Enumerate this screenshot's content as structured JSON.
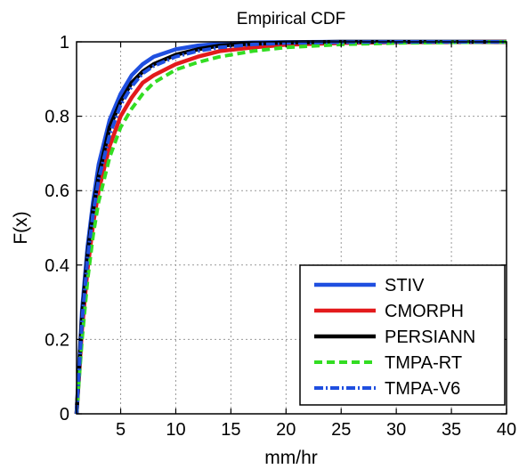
{
  "chart_data": {
    "type": "line",
    "title": "Empirical CDF",
    "xlabel": "mm/hr",
    "ylabel": "F(x)",
    "xlim": [
      1,
      40
    ],
    "ylim": [
      0,
      1
    ],
    "xticks": [
      5,
      10,
      15,
      20,
      25,
      30,
      35,
      40
    ],
    "xtick_labels": [
      "5",
      "10",
      "15",
      "20",
      "25",
      "30",
      "35",
      "40"
    ],
    "yticks": [
      0,
      0.2,
      0.4,
      0.6,
      0.8,
      1
    ],
    "ytick_labels": [
      "0",
      "0.2",
      "0.4",
      "0.6",
      "0.8",
      "1"
    ],
    "grid": true,
    "legend_position": "bottom-right",
    "series": [
      {
        "name": "STIV",
        "color": "#1f4fe0",
        "style": "solid",
        "x": [
          1,
          1.5,
          2,
          2.5,
          3,
          4,
          5,
          6,
          7,
          8,
          10,
          12,
          14,
          17,
          20,
          25,
          30,
          40
        ],
        "y": [
          0,
          0.28,
          0.45,
          0.57,
          0.67,
          0.79,
          0.86,
          0.91,
          0.94,
          0.96,
          0.98,
          0.99,
          0.995,
          0.998,
          0.999,
          1,
          1,
          1
        ]
      },
      {
        "name": "CMORPH",
        "color": "#e31a1c",
        "style": "solid",
        "x": [
          1,
          1.5,
          2,
          2.5,
          3,
          4,
          5,
          6,
          7,
          8,
          10,
          12,
          14,
          17,
          20,
          25,
          30,
          40
        ],
        "y": [
          0,
          0.23,
          0.39,
          0.51,
          0.6,
          0.72,
          0.8,
          0.85,
          0.89,
          0.91,
          0.94,
          0.96,
          0.975,
          0.985,
          0.992,
          0.997,
          0.999,
          1
        ]
      },
      {
        "name": "PERSIANN",
        "color": "#000000",
        "style": "solid",
        "x": [
          1,
          1.5,
          2,
          2.5,
          3,
          4,
          5,
          6,
          7,
          8,
          10,
          12,
          14,
          17,
          20,
          25,
          30,
          40
        ],
        "y": [
          0,
          0.26,
          0.43,
          0.55,
          0.64,
          0.77,
          0.84,
          0.89,
          0.92,
          0.94,
          0.965,
          0.98,
          0.99,
          0.995,
          0.998,
          1,
          1,
          1
        ]
      },
      {
        "name": "TMPA-RT",
        "color": "#33dd22",
        "style": "dashed",
        "x": [
          1,
          1.5,
          2,
          2.5,
          3,
          4,
          5,
          6,
          7,
          8,
          10,
          12,
          14,
          17,
          20,
          25,
          30,
          40
        ],
        "y": [
          0,
          0.2,
          0.36,
          0.48,
          0.57,
          0.69,
          0.77,
          0.82,
          0.86,
          0.89,
          0.925,
          0.945,
          0.96,
          0.975,
          0.985,
          0.993,
          0.997,
          1
        ]
      },
      {
        "name": "TMPA-V6",
        "color": "#1f4fe0",
        "style": "dashdot",
        "x": [
          1,
          1.5,
          2,
          2.5,
          3,
          4,
          5,
          6,
          7,
          8,
          10,
          12,
          14,
          17,
          20,
          25,
          30,
          40
        ],
        "y": [
          0,
          0.25,
          0.42,
          0.54,
          0.63,
          0.75,
          0.83,
          0.88,
          0.915,
          0.935,
          0.96,
          0.975,
          0.985,
          0.993,
          0.997,
          0.999,
          1,
          1
        ]
      }
    ]
  }
}
